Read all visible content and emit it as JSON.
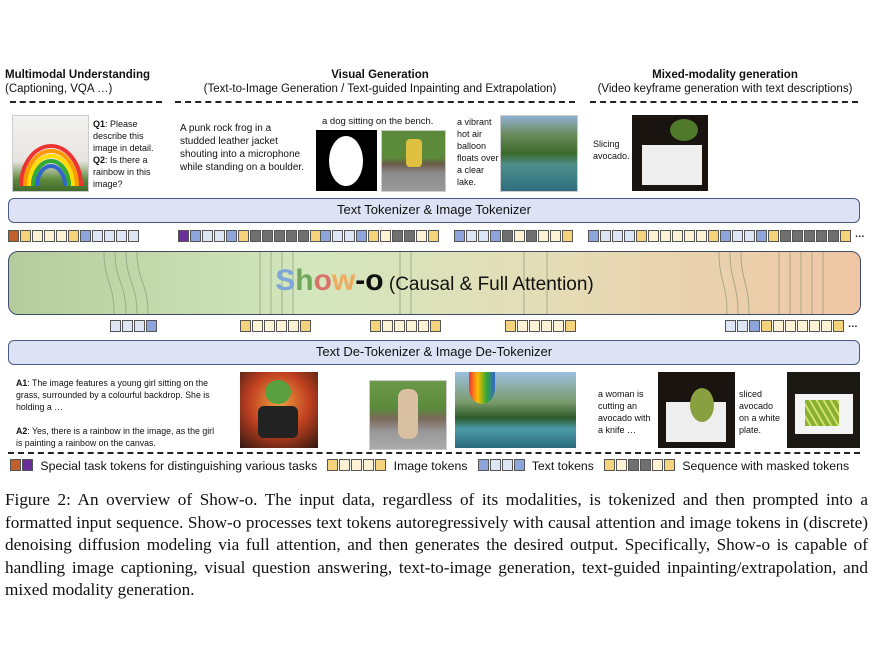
{
  "sections": {
    "understanding": {
      "title": "Multimodal Understanding",
      "subtitle": "(Captioning, VQA …)"
    },
    "generation": {
      "title": "Visual Generation",
      "subtitle": "(Text-to-Image Generation / Text-guided Inpainting and Extrapolation)"
    },
    "mixed": {
      "title": "Mixed-modality generation",
      "subtitle": "(Video keyframe generation with text descriptions)"
    }
  },
  "inputs": {
    "q1_label": "Q1",
    "q1": ": Please describe this image in detail.",
    "q2_label": "Q2",
    "q2": ": Is there a rainbow in this image?",
    "frog_prompt": "A punk rock frog in a studded leather jacket shouting into a microphone while standing on a boulder.",
    "dog_prompt": "a dog sitting on the bench.",
    "balloon_prompt": "a vibrant hot air balloon floats over a clear lake.",
    "slicing": "Slicing avocado."
  },
  "tokenizer": "Text Tokenizer & Image Tokenizer",
  "model": {
    "name_letters": [
      "S",
      "h",
      "o",
      "w"
    ],
    "name_colors": [
      "#7fa6d8",
      "#6fa85a",
      "#d9736a",
      "#eeaa5e"
    ],
    "name_suffix": "-o",
    "desc": "(Causal & Full Attention)"
  },
  "detokenizer": "Text De-Tokenizer & Image De-Tokenizer",
  "outputs": {
    "a1_label": "A1",
    "a1": ": The image features a young girl sitting on the grass, surrounded by a colourful backdrop. She is holding a …",
    "a2_label": "A2",
    "a2": ": Yes, there is a rainbow in the image, as the girl is painting a rainbow on the canvas.",
    "woman": "a woman is cutting an avocado with a knife …",
    "sliced": "sliced avocado on a white plate."
  },
  "token_colors": {
    "o": "#c0602a",
    "p": "#6a2e9a",
    "Y": "#f5d37a",
    "y": "#fdf3d4",
    "B": "#8ea5dc",
    "b": "#dce6f5",
    "G": "#707070"
  },
  "top_tokens": [
    "oYyyyYBbbbb",
    "pBbbBYGGGGGY",
    "BbbBYyGGyY",
    "BbbBGyGyyY",
    "BbbbYyyyyyYBbbBYGGGGGY"
  ],
  "bottom_tokens": [
    "bbbB",
    "YyyyyY",
    "YyyyyY",
    "YyyyyY",
    "bbBYyyyyyY"
  ],
  "ellipsis": "…",
  "legend": [
    {
      "tokens": "op",
      "label": "Special task tokens for distinguishing various tasks"
    },
    {
      "tokens": "YyyyY",
      "label": "Image tokens"
    },
    {
      "tokens": "BbbB",
      "label": "Text tokens"
    },
    {
      "tokens": "YyGGyY",
      "label": "Sequence with masked tokens"
    }
  ],
  "caption": "Figure 2:  An overview of Show-o. The input data, regardless of its modalities, is tokenized and then prompted into a formatted input sequence. Show-o processes text tokens autoregressively with causal attention and image tokens in (discrete) denoising diffusion modeling via full attention, and then generates the desired output. Specifically, Show-o is capable of handling image captioning, visual question answering, text-to-image generation, text-guided inpainting/extrapolation, and mixed modality generation."
}
